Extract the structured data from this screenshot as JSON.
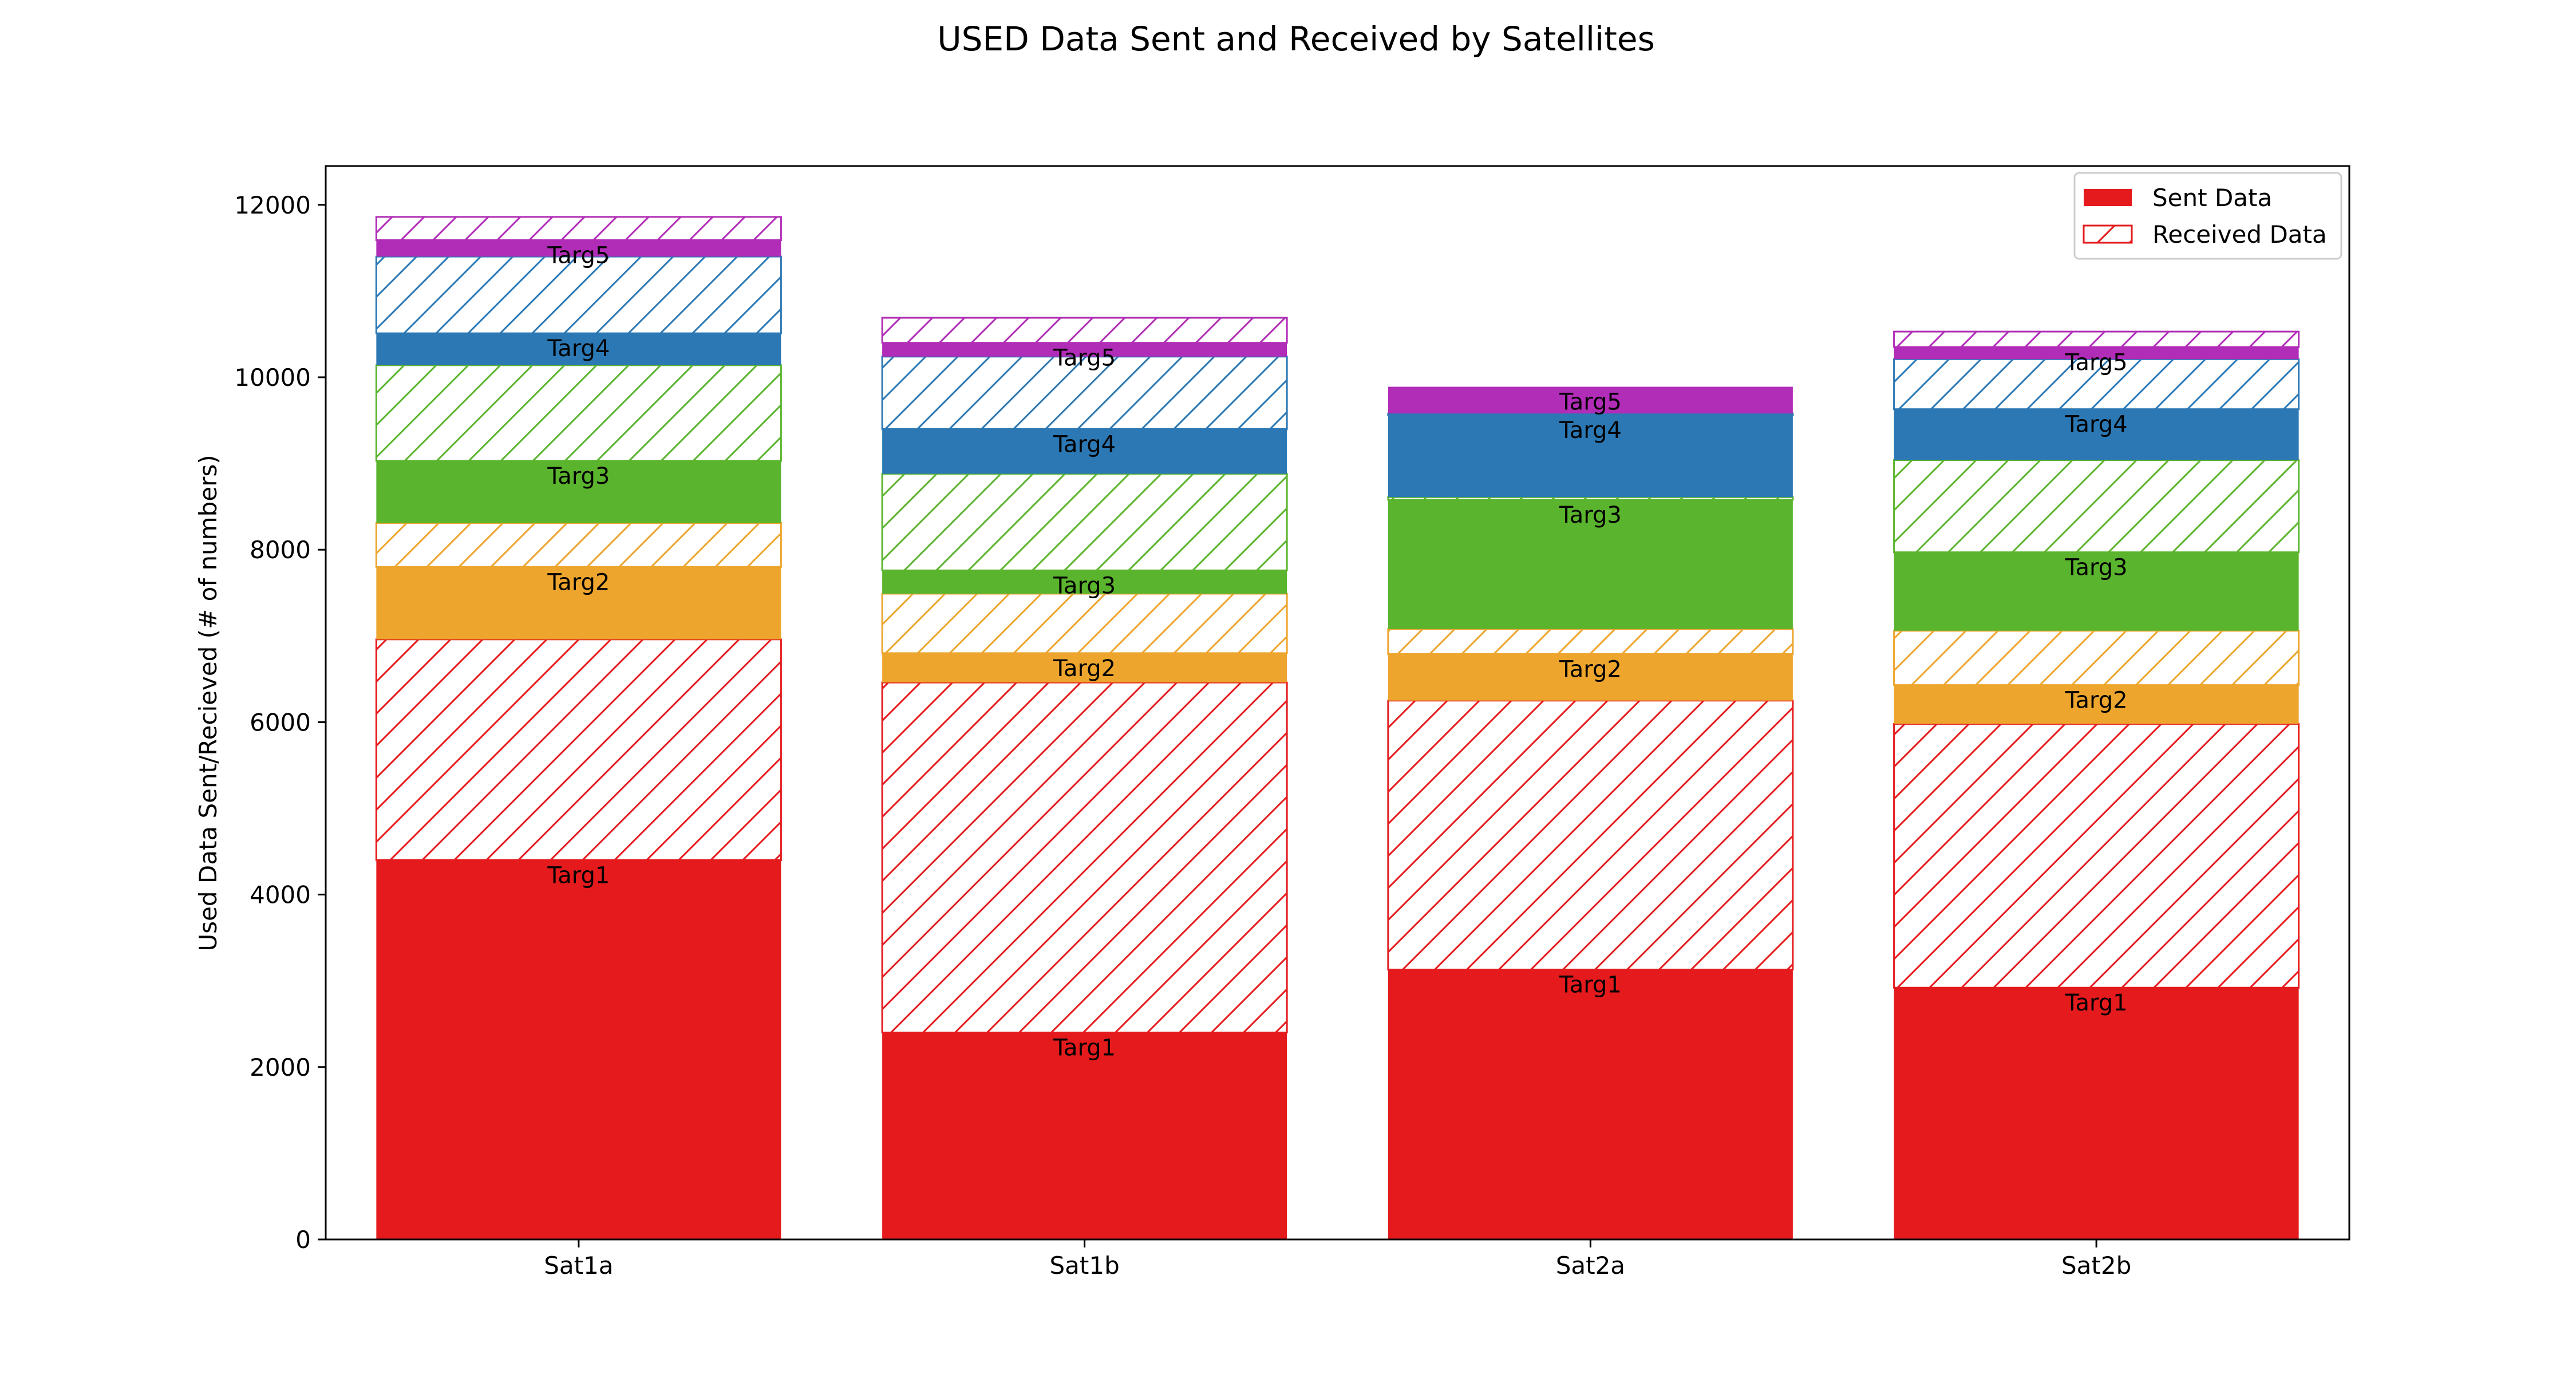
{
  "chart_data": {
    "type": "bar",
    "stacked": true,
    "title": "USED Data Sent and Received by Satellites",
    "xlabel": "",
    "ylabel": "Used Data Sent/Recieved (# of numbers)",
    "categories": [
      "Sat1a",
      "Sat1b",
      "Sat2a",
      "Sat2b"
    ],
    "ylim": [
      0,
      12450
    ],
    "yticks": [
      0,
      2000,
      4000,
      6000,
      8000,
      10000,
      12000
    ],
    "grid": false,
    "legend": {
      "position": "top-right",
      "entries": [
        {
          "label": "Sent Data",
          "style": "solid",
          "color": "#e41a1c"
        },
        {
          "label": "Received Data",
          "style": "hatched",
          "color": "#e41a1c"
        }
      ]
    },
    "targets": [
      {
        "name": "Targ1",
        "color": "#e41a1c"
      },
      {
        "name": "Targ2",
        "color": "#eda52d"
      },
      {
        "name": "Targ3",
        "color": "#5ab42d"
      },
      {
        "name": "Targ4",
        "color": "#2b78b4"
      },
      {
        "name": "Targ5",
        "color": "#b12cb7"
      }
    ],
    "series": [
      {
        "category": "Sat1a",
        "segments": [
          {
            "target": "Targ1",
            "sent": 4400,
            "received": 2560
          },
          {
            "target": "Targ2",
            "sent": 840,
            "received": 510
          },
          {
            "target": "Targ3",
            "sent": 720,
            "received": 1110
          },
          {
            "target": "Targ4",
            "sent": 370,
            "received": 890
          },
          {
            "target": "Targ5",
            "sent": 190,
            "received": 270
          }
        ]
      },
      {
        "category": "Sat1b",
        "segments": [
          {
            "target": "Targ1",
            "sent": 2400,
            "received": 4060
          },
          {
            "target": "Targ2",
            "sent": 340,
            "received": 690
          },
          {
            "target": "Targ3",
            "sent": 270,
            "received": 1120
          },
          {
            "target": "Targ4",
            "sent": 520,
            "received": 840
          },
          {
            "target": "Targ5",
            "sent": 160,
            "received": 290
          }
        ]
      },
      {
        "category": "Sat2a",
        "segments": [
          {
            "target": "Targ1",
            "sent": 3130,
            "received": 3120
          },
          {
            "target": "Targ2",
            "sent": 540,
            "received": 290
          },
          {
            "target": "Targ3",
            "sent": 1500,
            "received": 30
          },
          {
            "target": "Targ4",
            "sent": 950,
            "received": 20
          },
          {
            "target": "Targ5",
            "sent": 310,
            "received": 0
          }
        ]
      },
      {
        "category": "Sat2b",
        "segments": [
          {
            "target": "Targ1",
            "sent": 2920,
            "received": 3060
          },
          {
            "target": "Targ2",
            "sent": 450,
            "received": 630
          },
          {
            "target": "Targ3",
            "sent": 910,
            "received": 1070
          },
          {
            "target": "Targ4",
            "sent": 590,
            "received": 580
          },
          {
            "target": "Targ5",
            "sent": 140,
            "received": 180
          }
        ]
      }
    ]
  }
}
